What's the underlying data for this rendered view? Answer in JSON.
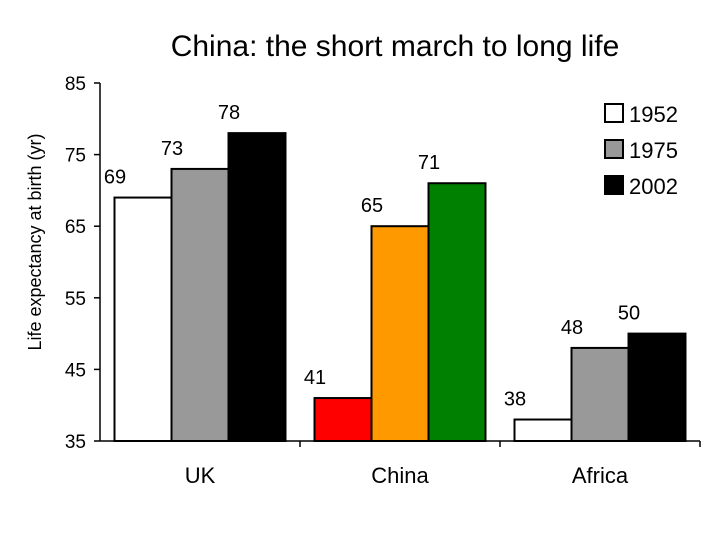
{
  "chart_data": {
    "type": "bar",
    "title": "China: the short march to long life",
    "ylabel": "Life expectancy at birth (yr)",
    "xlabel": "",
    "categories": [
      "UK",
      "China",
      "Africa"
    ],
    "ylim": [
      35,
      85
    ],
    "yticks": [
      35,
      45,
      55,
      65,
      75,
      85
    ],
    "grid": false,
    "legend": "top-right",
    "legend_entries": [
      "1952",
      "1975",
      "2002"
    ],
    "legend_colors": [
      "#ffffff",
      "#999999",
      "#000000"
    ],
    "groups": [
      {
        "category": "UK",
        "values": [
          69,
          73,
          78
        ],
        "colors": [
          "#ffffff",
          "#999999",
          "#000000"
        ]
      },
      {
        "category": "China",
        "values": [
          41,
          65,
          71
        ],
        "colors": [
          "#ff0000",
          "#ff9900",
          "#008000"
        ]
      },
      {
        "category": "Africa",
        "values": [
          38,
          48,
          50
        ],
        "colors": [
          "#ffffff",
          "#999999",
          "#000000"
        ]
      }
    ]
  }
}
